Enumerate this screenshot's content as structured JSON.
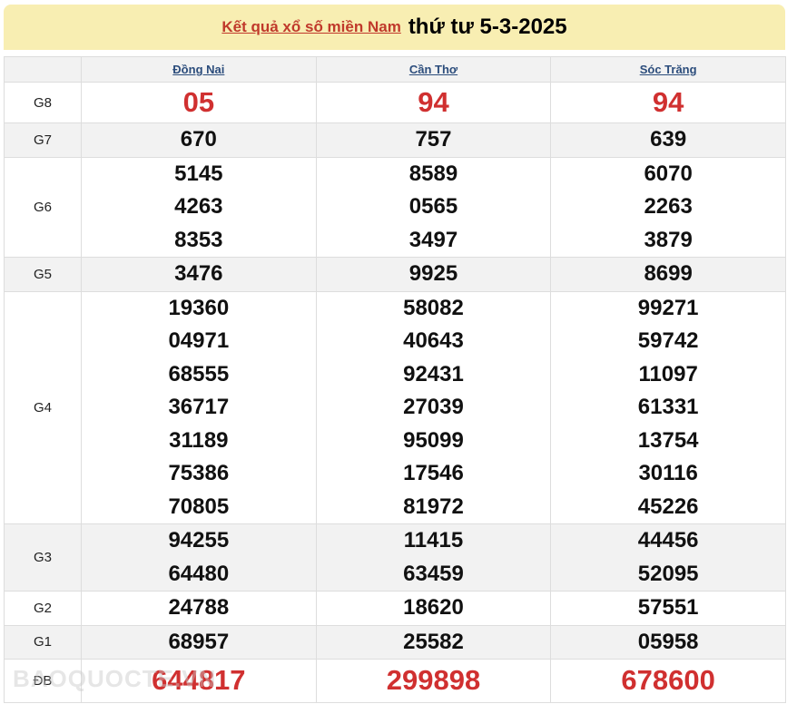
{
  "header": {
    "link_text": "Kết quả xổ số miền Nam",
    "date_text": "thứ tư 5-3-2025"
  },
  "provinces": [
    "Đồng Nai",
    "Cần Thơ",
    "Sóc Trăng"
  ],
  "prizes": [
    {
      "label": "G8",
      "highlight": true,
      "results": [
        [
          "05"
        ],
        [
          "94"
        ],
        [
          "94"
        ]
      ]
    },
    {
      "label": "G7",
      "results": [
        [
          "670"
        ],
        [
          "757"
        ],
        [
          "639"
        ]
      ]
    },
    {
      "label": "G6",
      "results": [
        [
          "5145",
          "4263",
          "8353"
        ],
        [
          "8589",
          "0565",
          "3497"
        ],
        [
          "6070",
          "2263",
          "3879"
        ]
      ]
    },
    {
      "label": "G5",
      "results": [
        [
          "3476"
        ],
        [
          "9925"
        ],
        [
          "8699"
        ]
      ]
    },
    {
      "label": "G4",
      "results": [
        [
          "19360",
          "04971",
          "68555",
          "36717",
          "31189",
          "75386",
          "70805"
        ],
        [
          "58082",
          "40643",
          "92431",
          "27039",
          "95099",
          "17546",
          "81972"
        ],
        [
          "99271",
          "59742",
          "11097",
          "61331",
          "13754",
          "30116",
          "45226"
        ]
      ]
    },
    {
      "label": "G3",
      "results": [
        [
          "94255",
          "64480"
        ],
        [
          "11415",
          "63459"
        ],
        [
          "44456",
          "52095"
        ]
      ]
    },
    {
      "label": "G2",
      "results": [
        [
          "24788"
        ],
        [
          "18620"
        ],
        [
          "57551"
        ]
      ]
    },
    {
      "label": "G1",
      "results": [
        [
          "68957"
        ],
        [
          "25582"
        ],
        [
          "05958"
        ]
      ]
    },
    {
      "label": "ĐB",
      "highlight": true,
      "results": [
        [
          "644817"
        ],
        [
          "299898"
        ],
        [
          "678600"
        ]
      ]
    }
  ],
  "watermark": "BAOQUOCTE.VN",
  "colors": {
    "title_band": "#f8eeb2",
    "highlight": "#d03030",
    "link": "#2c4d7c",
    "row_alt": "#f2f2f2"
  }
}
